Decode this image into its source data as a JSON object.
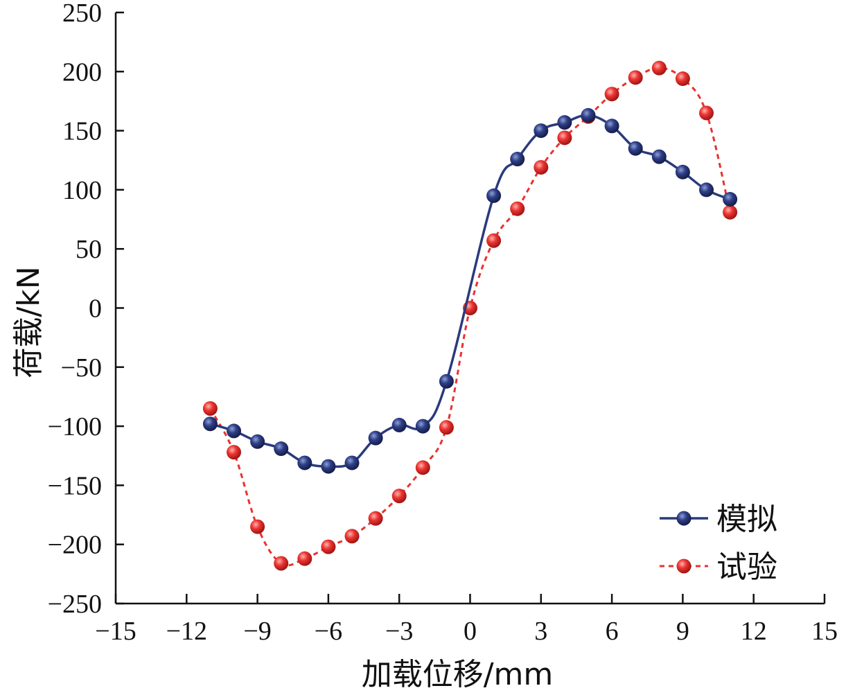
{
  "chart_data": {
    "type": "line",
    "title": "",
    "xlabel": "加载位移/mm",
    "ylabel": "荷载/kN",
    "xlim": [
      -15,
      15
    ],
    "ylim": [
      -250,
      250
    ],
    "xticks": [
      -15,
      -12,
      -9,
      -6,
      -3,
      0,
      3,
      6,
      9,
      12,
      15
    ],
    "yticks": [
      250,
      200,
      150,
      100,
      50,
      0,
      -50,
      -100,
      -150,
      -200,
      -250
    ],
    "xtick_labels": [
      "−15",
      "−12",
      "−9",
      "−6",
      "−3",
      "0",
      "3",
      "6",
      "9",
      "12",
      "15"
    ],
    "ytick_labels": [
      "250",
      "200",
      "150",
      "100",
      "50",
      "0",
      "−50",
      "−100",
      "−150",
      "−200",
      "−250"
    ],
    "grid": false,
    "legend_position": "bottom-right",
    "series": [
      {
        "name": "模拟",
        "color": "#2a3a7c",
        "line_style": "solid",
        "x": [
          -11,
          -10,
          -9,
          -8,
          -7,
          -6,
          -5,
          -4,
          -3,
          -2,
          -1,
          1,
          2,
          3,
          4,
          5,
          6,
          7,
          8,
          9,
          10,
          11
        ],
        "y": [
          -98,
          -104,
          -113,
          -119,
          -131,
          -134,
          -131,
          -110,
          -99,
          -100,
          -62,
          95,
          126,
          150,
          157,
          163,
          154,
          135,
          128,
          115,
          100,
          92
        ]
      },
      {
        "name": "试验",
        "color": "#e8312f",
        "line_style": "dashed",
        "x": [
          -11,
          -10,
          -9,
          -8,
          -7,
          -6,
          -5,
          -4,
          -3,
          -2,
          -1,
          0,
          1,
          2,
          3,
          4,
          5,
          6,
          7,
          8,
          9,
          10,
          11
        ],
        "y": [
          -85,
          -122,
          -185,
          -216,
          -212,
          -202,
          -193,
          -178,
          -159,
          -135,
          -101,
          0,
          57,
          84,
          119,
          144,
          162,
          181,
          195,
          203,
          194,
          165,
          81
        ]
      }
    ]
  }
}
